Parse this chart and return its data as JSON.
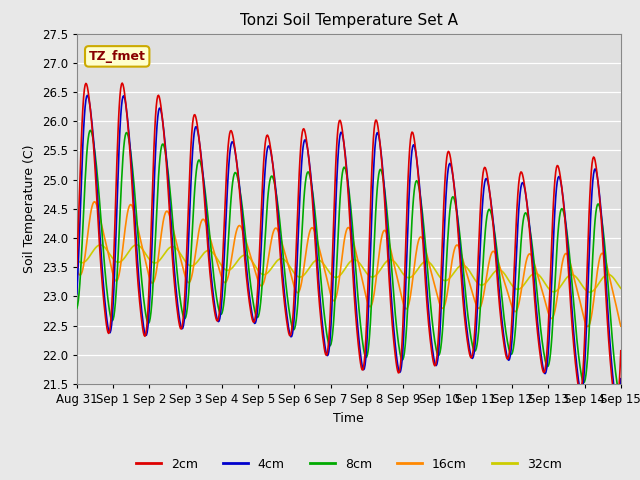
{
  "title": "Tonzi Soil Temperature Set A",
  "xlabel": "Time",
  "ylabel": "Soil Temperature (C)",
  "ylim": [
    21.5,
    27.5
  ],
  "xlim": [
    0,
    15
  ],
  "annotation_text": "TZ_fmet",
  "annotation_bg": "#ffffcc",
  "annotation_border": "#ccaa00",
  "plot_bg_color": "#e0e0e0",
  "fig_bg_color": "#e8e8e8",
  "grid_color": "#ffffff",
  "series": {
    "2cm": {
      "color": "#dd0000",
      "lw": 1.2
    },
    "4cm": {
      "color": "#0000cc",
      "lw": 1.2
    },
    "8cm": {
      "color": "#00aa00",
      "lw": 1.2
    },
    "16cm": {
      "color": "#ff8800",
      "lw": 1.2
    },
    "32cm": {
      "color": "#cccc00",
      "lw": 1.2
    }
  },
  "x_tick_labels": [
    "Aug 31",
    "Sep 1",
    "Sep 2",
    "Sep 3",
    "Sep 4",
    "Sep 5",
    "Sep 6",
    "Sep 7",
    "Sep 8",
    "Sep 9",
    "Sep 10",
    "Sep 11",
    "Sep 12",
    "Sep 13",
    "Sep 14",
    "Sep 15"
  ],
  "yticks": [
    21.5,
    22.0,
    22.5,
    23.0,
    23.5,
    24.0,
    24.5,
    25.0,
    25.5,
    26.0,
    26.5,
    27.0,
    27.5
  ],
  "n_points": 720
}
